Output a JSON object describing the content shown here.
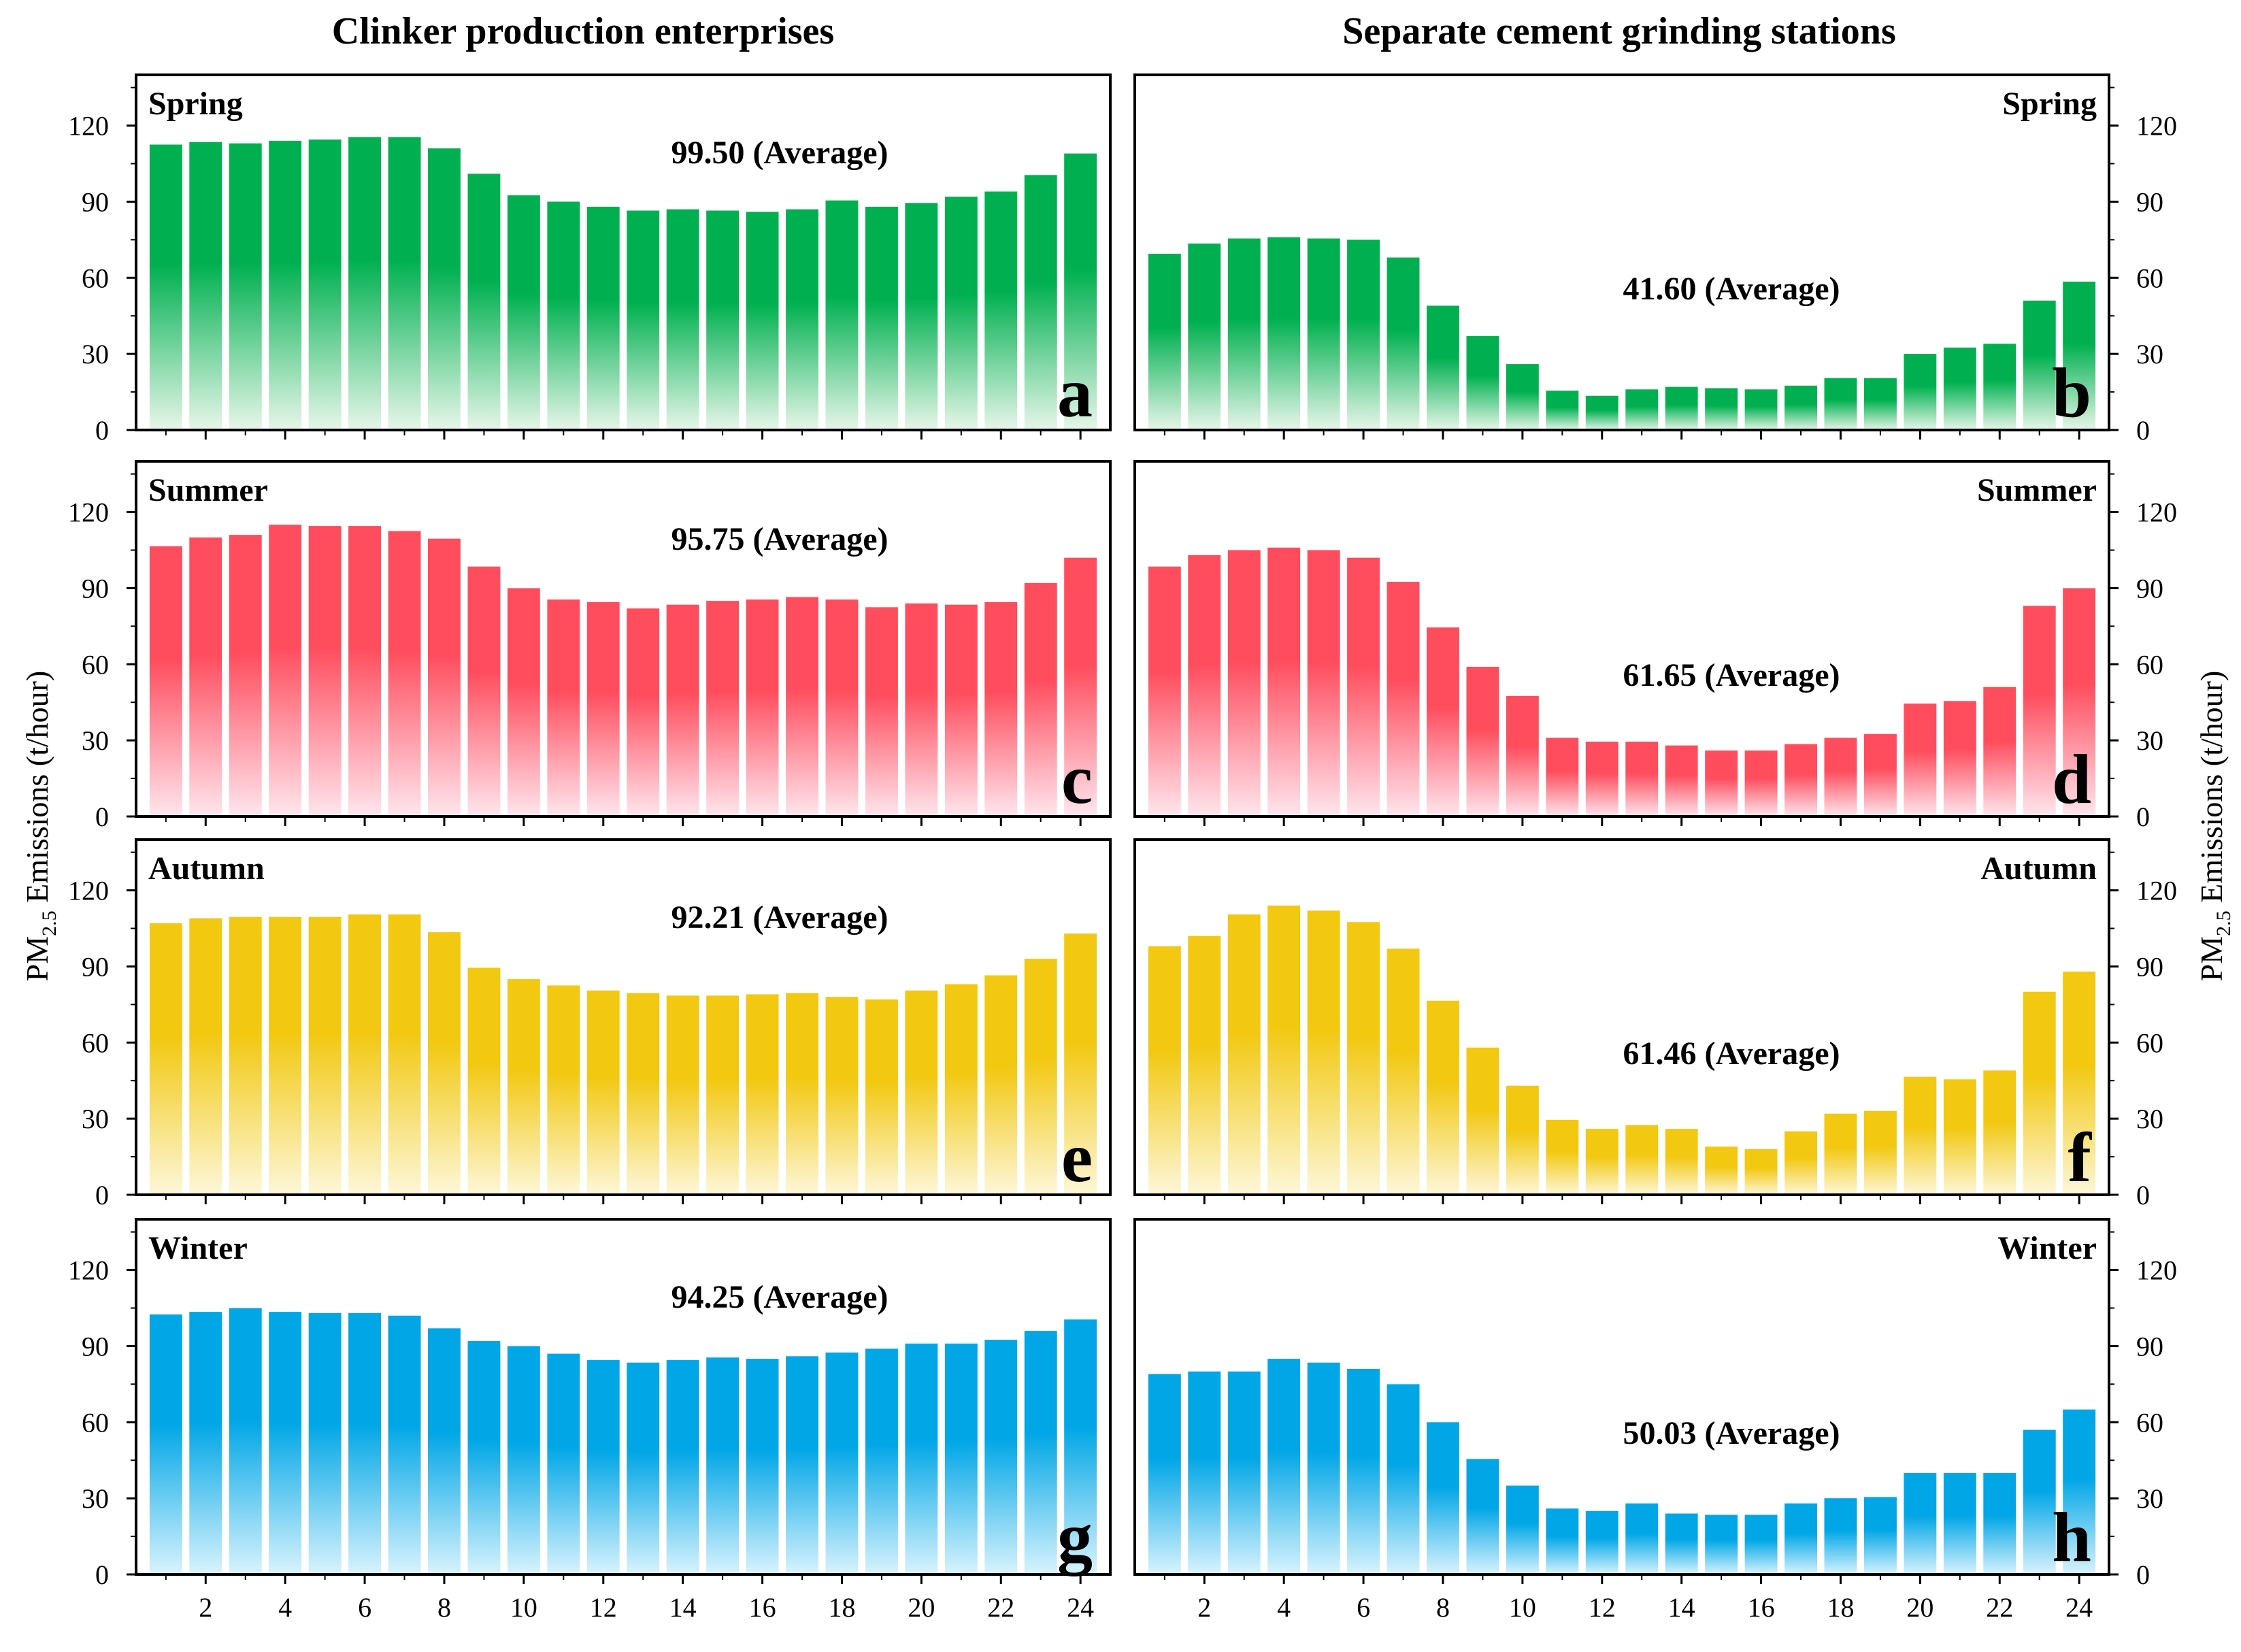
{
  "figure": {
    "left_column_title": "Clinker production enterprises",
    "right_column_title": "Separate cement grinding stations",
    "y_axis_label_prefix": "PM",
    "y_axis_label_subscript": "2.5",
    "y_axis_label_suffix": " Emissions (t/hour)"
  },
  "colors": {
    "spring": "#00b050",
    "summer": "#ff4d5e",
    "autumn": "#f2c811",
    "winter": "#00a6e6",
    "spring_light": "#e8f6ea",
    "summer_light": "#ffe6ee",
    "autumn_light": "#fdf7d9",
    "winter_light": "#d9f3fd"
  },
  "chart_data": [
    {
      "type": "bar",
      "panel": "a",
      "column": "left",
      "season": "Spring",
      "color_key": "spring",
      "average_label": "99.50 (Average)",
      "x": [
        1,
        2,
        3,
        4,
        5,
        6,
        7,
        8,
        9,
        10,
        11,
        12,
        13,
        14,
        15,
        16,
        17,
        18,
        19,
        20,
        21,
        22,
        23,
        24
      ],
      "values": [
        112.5,
        113.5,
        113,
        114,
        114.5,
        115.5,
        115.5,
        111,
        101,
        92.5,
        90,
        88,
        86.5,
        87,
        86.5,
        86,
        87,
        90.5,
        88,
        89.5,
        92,
        94,
        100.5,
        109
      ],
      "ylim": [
        0,
        140
      ],
      "yticks": [
        0,
        30,
        60,
        90,
        120
      ],
      "xticks": [
        2,
        4,
        6,
        8,
        10,
        12,
        14,
        16,
        18,
        20,
        22,
        24
      ],
      "ylabel": "PM2.5 Emissions (t/hour)"
    },
    {
      "type": "bar",
      "panel": "b",
      "column": "right",
      "season": "Spring",
      "color_key": "spring",
      "average_label": "41.60 (Average)",
      "x": [
        1,
        2,
        3,
        4,
        5,
        6,
        7,
        8,
        9,
        10,
        11,
        12,
        13,
        14,
        15,
        16,
        17,
        18,
        19,
        20,
        21,
        22,
        23,
        24
      ],
      "values": [
        69.5,
        73.5,
        75.5,
        76,
        75.5,
        75,
        68,
        49,
        37,
        26,
        15.5,
        13.5,
        16,
        17,
        16.5,
        16,
        17.5,
        20.5,
        20.5,
        30,
        32.5,
        34,
        51,
        58.5
      ],
      "ylim": [
        0,
        140
      ],
      "yticks": [
        0,
        30,
        60,
        90,
        120
      ],
      "xticks": [
        2,
        4,
        6,
        8,
        10,
        12,
        14,
        16,
        18,
        20,
        22,
        24
      ],
      "ylabel": "PM2.5 Emissions (t/hour)"
    },
    {
      "type": "bar",
      "panel": "c",
      "column": "left",
      "season": "Summer",
      "color_key": "summer",
      "average_label": "95.75 (Average)",
      "x": [
        1,
        2,
        3,
        4,
        5,
        6,
        7,
        8,
        9,
        10,
        11,
        12,
        13,
        14,
        15,
        16,
        17,
        18,
        19,
        20,
        21,
        22,
        23,
        24
      ],
      "values": [
        106.5,
        110,
        111,
        115,
        114.5,
        114.5,
        112.5,
        109.5,
        98.5,
        90,
        85.5,
        84.5,
        82,
        83.5,
        85,
        85.5,
        86.5,
        85.5,
        82.5,
        84,
        83.5,
        84.5,
        92,
        102
      ],
      "ylim": [
        0,
        140
      ],
      "yticks": [
        0,
        30,
        60,
        90,
        120
      ],
      "xticks": [
        2,
        4,
        6,
        8,
        10,
        12,
        14,
        16,
        18,
        20,
        22,
        24
      ],
      "ylabel": "PM2.5 Emissions (t/hour)"
    },
    {
      "type": "bar",
      "panel": "d",
      "column": "right",
      "season": "Summer",
      "color_key": "summer",
      "average_label": "61.65 (Average)",
      "x": [
        1,
        2,
        3,
        4,
        5,
        6,
        7,
        8,
        9,
        10,
        11,
        12,
        13,
        14,
        15,
        16,
        17,
        18,
        19,
        20,
        21,
        22,
        23,
        24
      ],
      "values": [
        98.5,
        103,
        105,
        106,
        105,
        102,
        92.5,
        74.5,
        59,
        47.5,
        31,
        29.5,
        29.5,
        28,
        26,
        26,
        28.5,
        31,
        32.5,
        44.5,
        45.5,
        51,
        83,
        90
      ],
      "ylim": [
        0,
        140
      ],
      "yticks": [
        0,
        30,
        60,
        90,
        120
      ],
      "xticks": [
        2,
        4,
        6,
        8,
        10,
        12,
        14,
        16,
        18,
        20,
        22,
        24
      ],
      "ylabel": "PM2.5 Emissions (t/hour)"
    },
    {
      "type": "bar",
      "panel": "e",
      "column": "left",
      "season": "Autumn",
      "color_key": "autumn",
      "average_label": "92.21 (Average)",
      "x": [
        1,
        2,
        3,
        4,
        5,
        6,
        7,
        8,
        9,
        10,
        11,
        12,
        13,
        14,
        15,
        16,
        17,
        18,
        19,
        20,
        21,
        22,
        23,
        24
      ],
      "values": [
        107,
        109,
        109.5,
        109.5,
        109.5,
        110.5,
        110.5,
        103.5,
        89.5,
        85,
        82.5,
        80.5,
        79.5,
        78.5,
        78.5,
        79,
        79.5,
        78,
        77,
        80.5,
        83,
        86.5,
        93,
        103
      ],
      "ylim": [
        0,
        140
      ],
      "yticks": [
        0,
        30,
        60,
        90,
        120
      ],
      "xticks": [
        2,
        4,
        6,
        8,
        10,
        12,
        14,
        16,
        18,
        20,
        22,
        24
      ],
      "ylabel": "PM2.5 Emissions (t/hour)"
    },
    {
      "type": "bar",
      "panel": "f",
      "column": "right",
      "season": "Autumn",
      "color_key": "autumn",
      "average_label": "61.46 (Average)",
      "x": [
        1,
        2,
        3,
        4,
        5,
        6,
        7,
        8,
        9,
        10,
        11,
        12,
        13,
        14,
        15,
        16,
        17,
        18,
        19,
        20,
        21,
        22,
        23,
        24
      ],
      "values": [
        98,
        102,
        110.5,
        114,
        112,
        107.5,
        97,
        76.5,
        58,
        43,
        29.5,
        26,
        27.5,
        26,
        19,
        18,
        25,
        32,
        33,
        46.5,
        45.5,
        49,
        80,
        88
      ],
      "ylim": [
        0,
        140
      ],
      "yticks": [
        0,
        30,
        60,
        90,
        120
      ],
      "xticks": [
        2,
        4,
        6,
        8,
        10,
        12,
        14,
        16,
        18,
        20,
        22,
        24
      ],
      "ylabel": "PM2.5 Emissions (t/hour)"
    },
    {
      "type": "bar",
      "panel": "g",
      "column": "left",
      "season": "Winter",
      "color_key": "winter",
      "average_label": "94.25 (Average)",
      "x": [
        1,
        2,
        3,
        4,
        5,
        6,
        7,
        8,
        9,
        10,
        11,
        12,
        13,
        14,
        15,
        16,
        17,
        18,
        19,
        20,
        21,
        22,
        23,
        24
      ],
      "values": [
        102.5,
        103.5,
        105,
        103.5,
        103,
        103,
        102,
        97,
        92,
        90,
        87,
        84.5,
        83.5,
        84.5,
        85.5,
        85,
        86,
        87.5,
        89,
        91,
        91,
        92.5,
        96,
        100.5
      ],
      "ylim": [
        0,
        140
      ],
      "yticks": [
        0,
        30,
        60,
        90,
        120
      ],
      "xticks": [
        2,
        4,
        6,
        8,
        10,
        12,
        14,
        16,
        18,
        20,
        22,
        24
      ],
      "ylabel": "PM2.5 Emissions (t/hour)"
    },
    {
      "type": "bar",
      "panel": "h",
      "column": "right",
      "season": "Winter",
      "color_key": "winter",
      "average_label": "50.03 (Average)",
      "x": [
        1,
        2,
        3,
        4,
        5,
        6,
        7,
        8,
        9,
        10,
        11,
        12,
        13,
        14,
        15,
        16,
        17,
        18,
        19,
        20,
        21,
        22,
        23,
        24
      ],
      "values": [
        79,
        80,
        80,
        85,
        83.5,
        81,
        75,
        60,
        45.5,
        35,
        26,
        25,
        28,
        24,
        23.5,
        23.5,
        28,
        30,
        30.5,
        40,
        40,
        40,
        57,
        65
      ],
      "ylim": [
        0,
        140
      ],
      "yticks": [
        0,
        30,
        60,
        90,
        120
      ],
      "xticks": [
        2,
        4,
        6,
        8,
        10,
        12,
        14,
        16,
        18,
        20,
        22,
        24
      ],
      "ylabel": "PM2.5 Emissions (t/hour)"
    }
  ]
}
